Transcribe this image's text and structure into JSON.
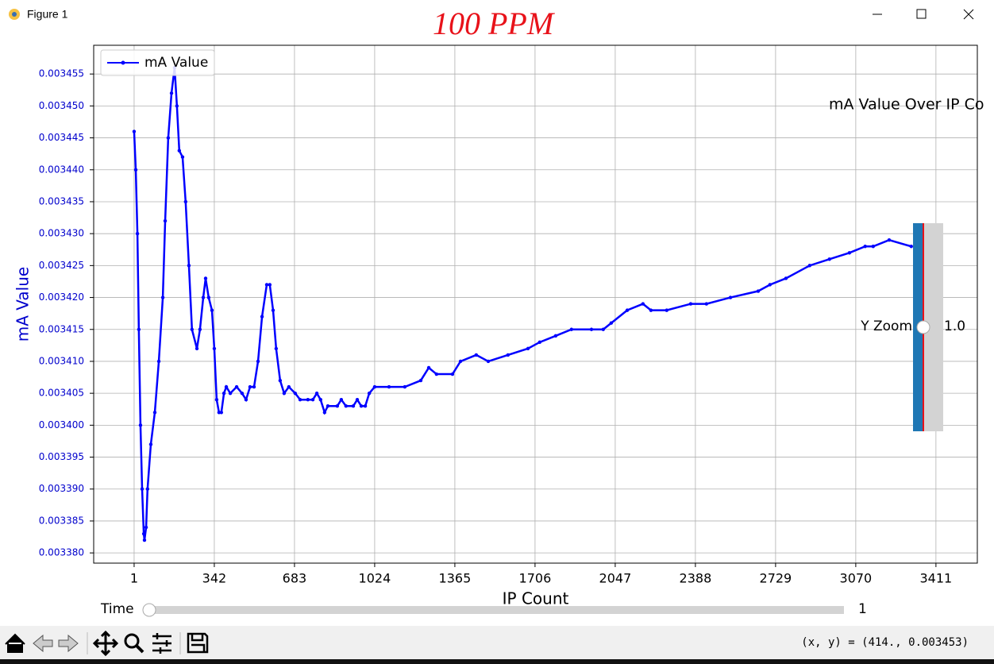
{
  "window": {
    "title": "Figure 1",
    "annotation": "100 PPM"
  },
  "chart_data": {
    "type": "line",
    "title": "mA Value Over IP Co",
    "x_label": "IP Count",
    "y_label": "mA Value",
    "x": [
      1,
      8,
      15,
      21,
      28,
      35,
      42,
      45,
      52,
      58,
      72,
      89,
      106,
      123,
      133,
      146,
      160,
      173,
      183,
      193,
      207,
      220,
      234,
      247,
      268,
      281,
      295,
      305,
      318,
      332,
      342,
      352,
      362,
      372,
      383,
      393,
      410,
      437,
      460,
      477,
      494,
      511,
      528,
      545,
      565,
      578,
      592,
      605,
      622,
      639,
      659,
      686,
      707,
      740,
      761,
      778,
      794,
      811,
      825,
      865,
      882,
      902,
      933,
      950,
      967,
      984,
      1001,
      1024,
      1085,
      1152,
      1220,
      1254,
      1287,
      1355,
      1389,
      1456,
      1507,
      1591,
      1676,
      1726,
      1794,
      1861,
      1946,
      1996,
      2030,
      2098,
      2165,
      2199,
      2266,
      2368,
      2435,
      2537,
      2655,
      2705,
      2773,
      2874,
      2958,
      3043,
      3110,
      3144,
      3212,
      3306
    ],
    "series": [
      {
        "name": "mA Value",
        "color": "#0000ff",
        "values": [
          0.003446,
          0.00344,
          0.00343,
          0.003415,
          0.0034,
          0.00339,
          0.003383,
          0.003382,
          0.003384,
          0.00339,
          0.003397,
          0.003402,
          0.00341,
          0.00342,
          0.003432,
          0.003445,
          0.003452,
          0.003456,
          0.00345,
          0.003443,
          0.003442,
          0.003435,
          0.003425,
          0.003415,
          0.003412,
          0.003415,
          0.00342,
          0.003423,
          0.00342,
          0.003418,
          0.003412,
          0.003404,
          0.003402,
          0.003402,
          0.003405,
          0.003406,
          0.003405,
          0.003406,
          0.003405,
          0.003404,
          0.003406,
          0.003406,
          0.00341,
          0.003417,
          0.003422,
          0.003422,
          0.003418,
          0.003412,
          0.003407,
          0.003405,
          0.003406,
          0.003405,
          0.003404,
          0.003404,
          0.003404,
          0.003405,
          0.003404,
          0.003402,
          0.003403,
          0.003403,
          0.003404,
          0.003403,
          0.003403,
          0.003404,
          0.003403,
          0.003403,
          0.003405,
          0.003406,
          0.003406,
          0.003406,
          0.003407,
          0.003409,
          0.003408,
          0.003408,
          0.00341,
          0.003411,
          0.00341,
          0.003411,
          0.003412,
          0.003413,
          0.003414,
          0.003415,
          0.003415,
          0.003415,
          0.003416,
          0.003418,
          0.003419,
          0.003418,
          0.003418,
          0.003419,
          0.003419,
          0.00342,
          0.003421,
          0.003422,
          0.003423,
          0.003425,
          0.003426,
          0.003427,
          0.003428,
          0.003428,
          0.003429,
          0.003428
        ]
      }
    ],
    "xlim": [
      -171,
      3587
    ],
    "ylim": [
      0.0033784,
      0.0034595
    ],
    "xticks": [
      1,
      342,
      683,
      1024,
      1365,
      1706,
      2047,
      2388,
      2729,
      3070,
      3411
    ],
    "yticks": [
      {
        "value": 0.00338,
        "label": "0.003380"
      },
      0.003385,
      {
        "value": 0.00339,
        "label": "0.003390"
      },
      0.003395,
      {
        "value": 0.0034,
        "label": "0.003400"
      },
      0.003405,
      {
        "value": 0.00341,
        "label": "0.003410"
      },
      0.003415,
      {
        "value": 0.00342,
        "label": "0.003420"
      },
      0.003425,
      {
        "value": 0.00343,
        "label": "0.003430"
      },
      0.003435,
      {
        "value": 0.00344,
        "label": "0.003440"
      },
      0.003445,
      {
        "value": 0.00345,
        "label": "0.003450"
      },
      0.003455
    ],
    "grid": true,
    "legend": "upper left"
  },
  "widgets": {
    "time_slider": {
      "label": "Time",
      "value": "1"
    },
    "y_zoom_slider": {
      "label": "Y Zoom",
      "value": "1.0"
    }
  },
  "status": {
    "coordinates": "(x, y) = (414., 0.003453)"
  }
}
